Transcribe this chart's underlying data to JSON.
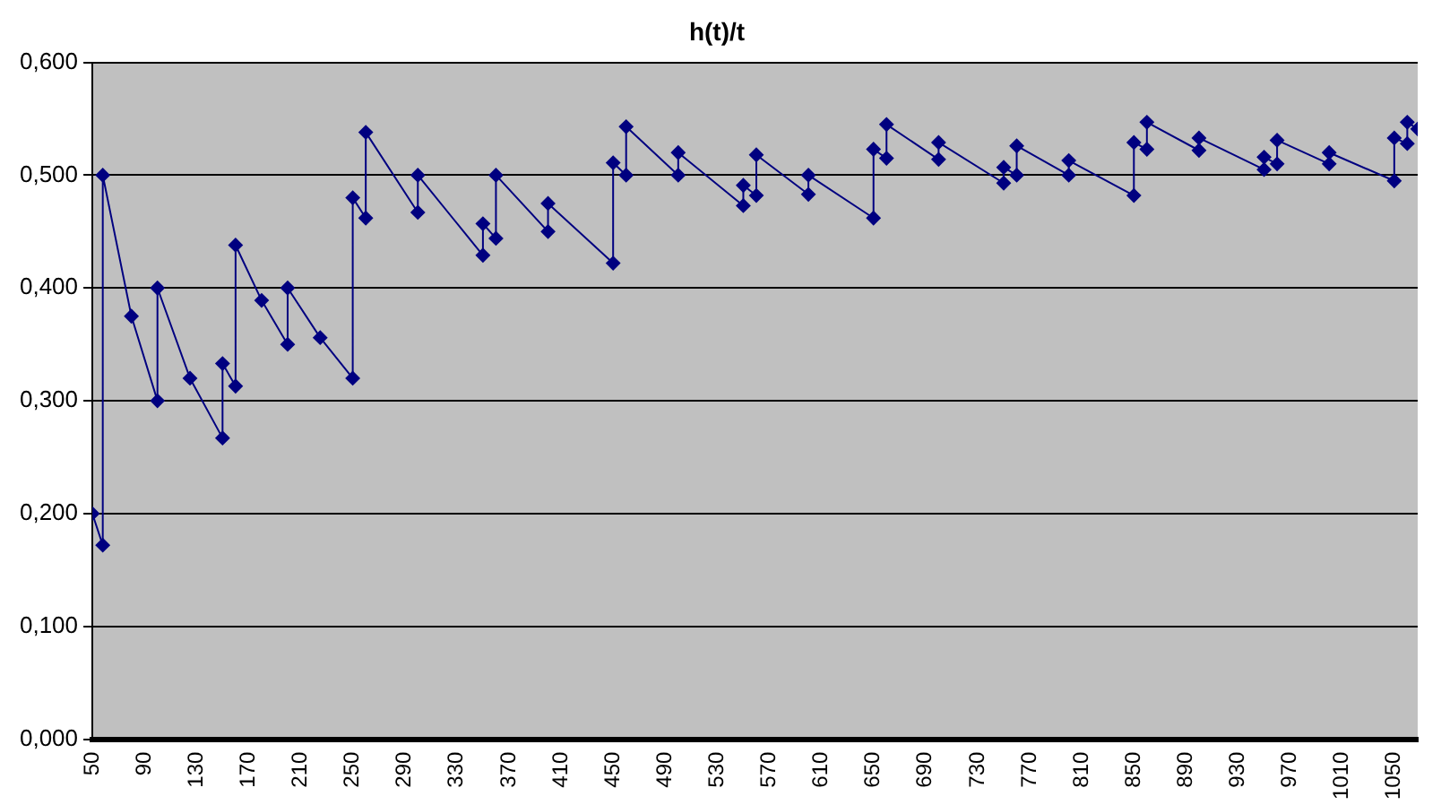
{
  "chart_data": {
    "type": "line",
    "title": "h(t)/t",
    "x": [
      50,
      58,
      58,
      80,
      100,
      100,
      125,
      150,
      150,
      160,
      160,
      180,
      200,
      200,
      225,
      250,
      250,
      260,
      260,
      300,
      300,
      350,
      350,
      360,
      360,
      400,
      400,
      450,
      450,
      460,
      460,
      500,
      500,
      550,
      550,
      560,
      560,
      600,
      600,
      650,
      650,
      660,
      660,
      700,
      700,
      750,
      750,
      760,
      760,
      800,
      800,
      850,
      850,
      860,
      860,
      900,
      900,
      950,
      950,
      960,
      960,
      1000,
      1000,
      1050,
      1050,
      1060,
      1060,
      1068
    ],
    "series": [
      {
        "color": "#000080",
        "values": [
          0.2,
          0.172,
          0.5,
          0.375,
          0.3,
          0.4,
          0.32,
          0.267,
          0.333,
          0.313,
          0.438,
          0.389,
          0.35,
          0.4,
          0.356,
          0.32,
          0.48,
          0.462,
          0.538,
          0.467,
          0.5,
          0.429,
          0.457,
          0.444,
          0.5,
          0.45,
          0.475,
          0.422,
          0.511,
          0.5,
          0.543,
          0.5,
          0.52,
          0.473,
          0.491,
          0.482,
          0.518,
          0.483,
          0.5,
          0.462,
          0.523,
          0.515,
          0.545,
          0.514,
          0.529,
          0.493,
          0.507,
          0.5,
          0.526,
          0.5,
          0.513,
          0.482,
          0.529,
          0.523,
          0.547,
          0.522,
          0.533,
          0.505,
          0.516,
          0.51,
          0.531,
          0.51,
          0.52,
          0.495,
          0.533,
          0.528,
          0.547,
          0.541
        ]
      }
    ],
    "xlim": [
      50,
      1068
    ],
    "xticks": [
      50,
      90,
      130,
      170,
      210,
      250,
      290,
      330,
      370,
      410,
      450,
      490,
      530,
      570,
      610,
      650,
      690,
      730,
      770,
      810,
      850,
      890,
      930,
      970,
      1010,
      1050
    ],
    "ylim": [
      0,
      0.6
    ],
    "yticks": [
      {
        "value": 0,
        "label": "0,000"
      },
      {
        "value": 0.1,
        "label": "0,100"
      },
      {
        "value": 0.2,
        "label": "0,200"
      },
      {
        "value": 0.3,
        "label": "0,300"
      },
      {
        "value": 0.4,
        "label": "0,400"
      },
      {
        "value": 0.5,
        "label": "0,500"
      },
      {
        "value": 0.6,
        "label": "0,600"
      }
    ],
    "grid": "y",
    "legend": false,
    "marker": "diamond",
    "line_style": "solid"
  }
}
